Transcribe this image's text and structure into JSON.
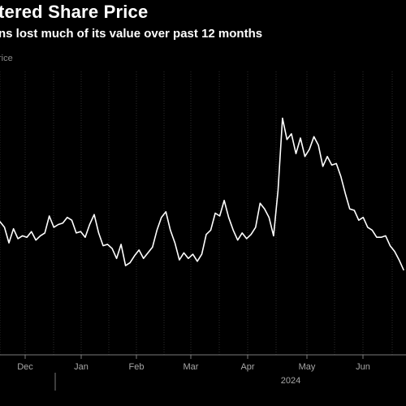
{
  "title": "tered Share Price",
  "subtitle": "ns lost much of its value over past 12 months",
  "legend_label": "rice",
  "chart_data": {
    "type": "line",
    "title": "tered Share Price",
    "subtitle": "ns lost much of its value over past 12 months",
    "legend": [
      "rice"
    ],
    "grid": true,
    "x_tick_labels": [
      "Dec",
      "Jan",
      "Feb",
      "Mar",
      "Apr",
      "May",
      "Jun"
    ],
    "x_secondary_label": "2024",
    "series": [
      {
        "name": "rice",
        "values": [
          47.0,
          45.0,
          39.5,
          44.5,
          41.0,
          42.0,
          41.5,
          43.5,
          40.5,
          42.0,
          43.0,
          49.0,
          45.0,
          46.0,
          46.5,
          48.5,
          47.5,
          43.0,
          43.5,
          41.5,
          46.0,
          49.5,
          43.0,
          38.5,
          39.0,
          37.5,
          34.0,
          39.0,
          31.5,
          32.5,
          35.0,
          37.0,
          34.0,
          36.0,
          38.0,
          44.0,
          48.5,
          50.5,
          44.0,
          39.5,
          33.5,
          36.0,
          34.0,
          35.5,
          33.0,
          35.5,
          42.5,
          44.0,
          50.0,
          49.0,
          54.5,
          48.5,
          44.0,
          40.5,
          43.0,
          41.0,
          42.5,
          45.0,
          53.5,
          51.5,
          48.5,
          42.0,
          58.0,
          83.5,
          76.0,
          78.0,
          71.0,
          76.5,
          70.0,
          72.5,
          77.0,
          74.0,
          66.5,
          70.0,
          67.0,
          67.5,
          63.0,
          57.0,
          51.5,
          51.0,
          47.5,
          48.5,
          45.0,
          44.0,
          41.5,
          41.5,
          42.0,
          38.5,
          36.5,
          33.5,
          30.0
        ]
      }
    ]
  }
}
